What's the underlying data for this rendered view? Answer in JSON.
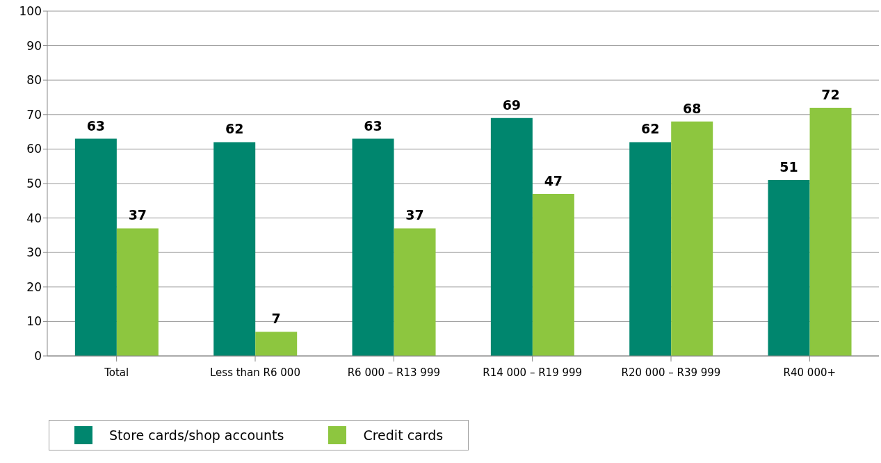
{
  "chart_data": {
    "type": "bar",
    "categories": [
      "Total",
      "Less than R6 000",
      "R6 000 – R13 999",
      "R14 000 – R19 999",
      "R20 000 – R39 999",
      "R40 000+"
    ],
    "series": [
      {
        "name": "Store cards/shop accounts",
        "color": "#00866e",
        "values": [
          63,
          62,
          63,
          69,
          62,
          51
        ]
      },
      {
        "name": "Credit cards",
        "color": "#8dc63f",
        "values": [
          37,
          7,
          37,
          47,
          68,
          72
        ]
      }
    ],
    "ylim": [
      0,
      100
    ],
    "yticks": [
      0,
      10,
      20,
      30,
      40,
      50,
      60,
      70,
      80,
      90,
      100
    ],
    "grid": "y",
    "legend": "bottom left",
    "data_labels": true
  }
}
